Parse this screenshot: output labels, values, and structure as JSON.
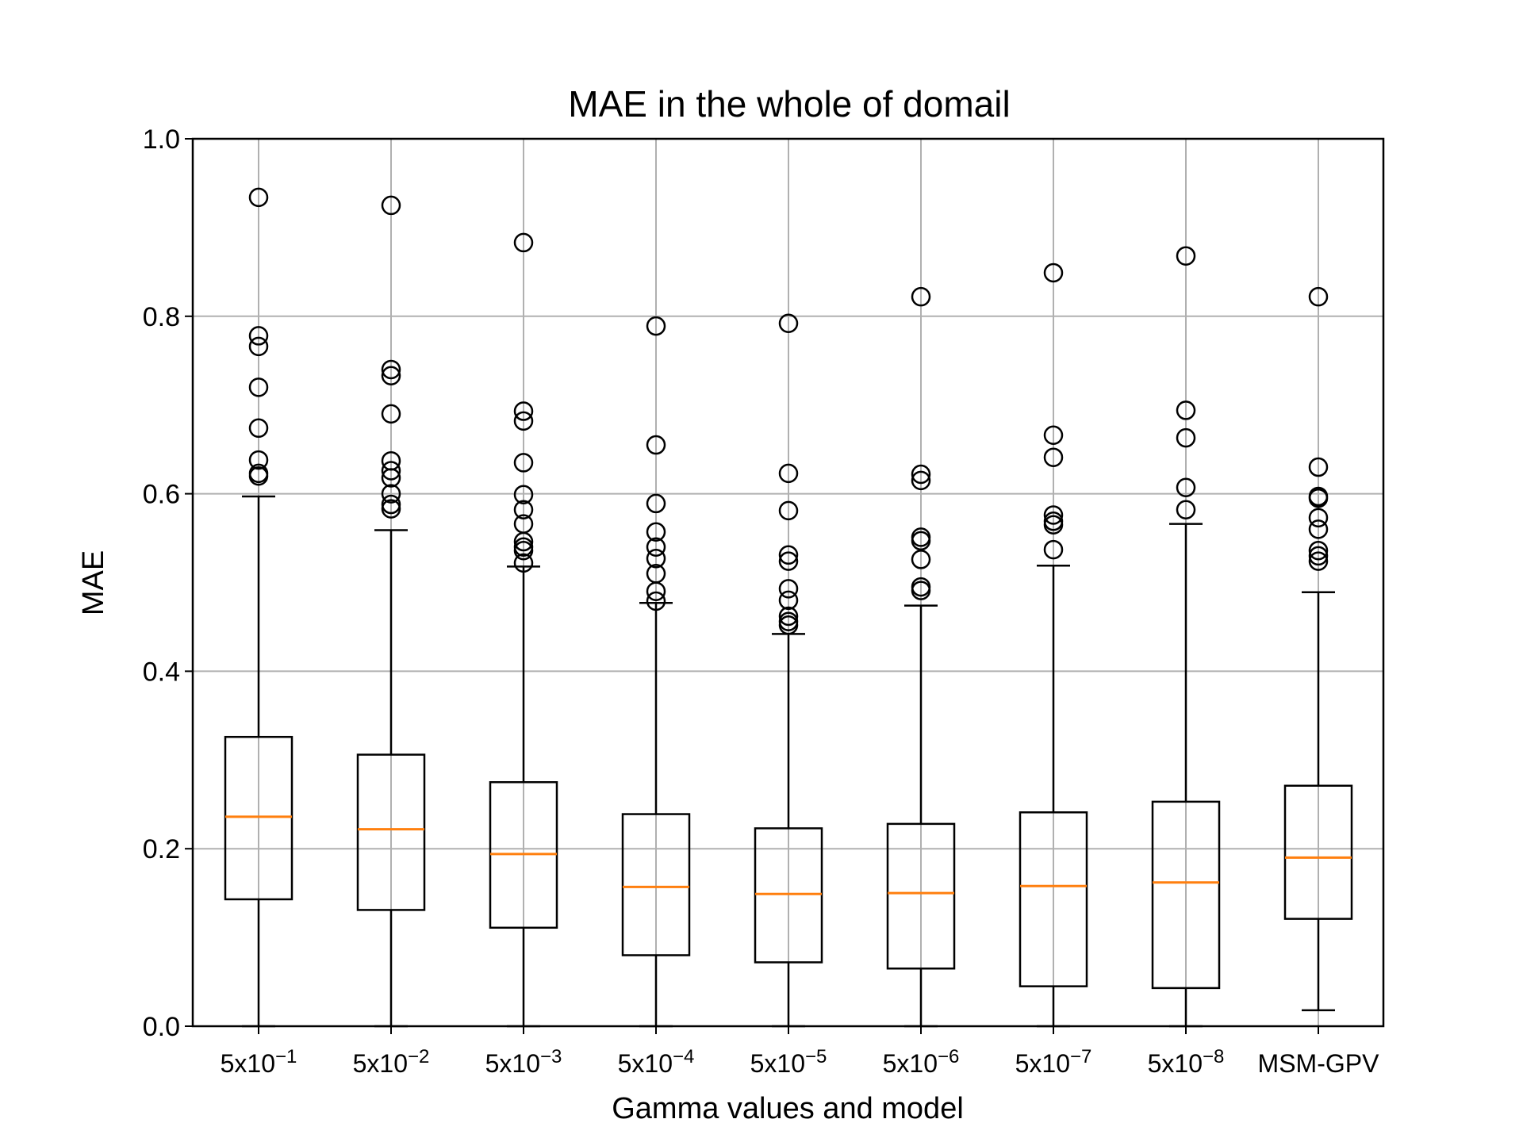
{
  "chart_data": {
    "type": "box",
    "title": "MAE in the whole of domail",
    "xlabel": "Gamma values and model",
    "ylabel": "MAE",
    "ylim": [
      0.0,
      1.0
    ],
    "yticks": [
      "0.0",
      "0.2",
      "0.4",
      "0.6",
      "0.8",
      "1.0"
    ],
    "grid": true,
    "colors": {
      "box": "#000000",
      "median": "#ff7f0e",
      "grid": "#b0b0b0"
    },
    "categories": [
      {
        "base": "5x10",
        "exp": "−1"
      },
      {
        "base": "5x10",
        "exp": "−2"
      },
      {
        "base": "5x10",
        "exp": "−3"
      },
      {
        "base": "5x10",
        "exp": "−4"
      },
      {
        "base": "5x10",
        "exp": "−5"
      },
      {
        "base": "5x10",
        "exp": "−6"
      },
      {
        "base": "5x10",
        "exp": "−7"
      },
      {
        "base": "5x10",
        "exp": "−8"
      },
      {
        "base": "MSM-GPV",
        "exp": ""
      }
    ],
    "boxes": [
      {
        "whisker_low": 0.0,
        "q1": 0.143,
        "median": 0.236,
        "q3": 0.326,
        "whisker_high": 0.597,
        "outliers": [
          0.934,
          0.778,
          0.766,
          0.72,
          0.674,
          0.638,
          0.623,
          0.62
        ]
      },
      {
        "whisker_low": 0.0,
        "q1": 0.131,
        "median": 0.222,
        "q3": 0.306,
        "whisker_high": 0.559,
        "outliers": [
          0.925,
          0.74,
          0.733,
          0.69,
          0.637,
          0.626,
          0.618,
          0.6,
          0.588,
          0.583
        ]
      },
      {
        "whisker_low": 0.0,
        "q1": 0.111,
        "median": 0.194,
        "q3": 0.275,
        "whisker_high": 0.518,
        "outliers": [
          0.883,
          0.693,
          0.682,
          0.635,
          0.599,
          0.582,
          0.566,
          0.546,
          0.54,
          0.536,
          0.522
        ]
      },
      {
        "whisker_low": 0.0,
        "q1": 0.08,
        "median": 0.157,
        "q3": 0.239,
        "whisker_high": 0.477,
        "outliers": [
          0.789,
          0.655,
          0.589,
          0.557,
          0.54,
          0.527,
          0.51,
          0.49,
          0.479
        ]
      },
      {
        "whisker_low": 0.0,
        "q1": 0.072,
        "median": 0.149,
        "q3": 0.223,
        "whisker_high": 0.442,
        "outliers": [
          0.792,
          0.623,
          0.581,
          0.531,
          0.524,
          0.493,
          0.48,
          0.462,
          0.456,
          0.452
        ]
      },
      {
        "whisker_low": 0.0,
        "q1": 0.065,
        "median": 0.15,
        "q3": 0.228,
        "whisker_high": 0.474,
        "outliers": [
          0.822,
          0.622,
          0.615,
          0.551,
          0.547,
          0.526,
          0.495,
          0.491
        ]
      },
      {
        "whisker_low": 0.0,
        "q1": 0.045,
        "median": 0.158,
        "q3": 0.241,
        "whisker_high": 0.519,
        "outliers": [
          0.849,
          0.666,
          0.641,
          0.576,
          0.569,
          0.565,
          0.537
        ]
      },
      {
        "whisker_low": 0.0,
        "q1": 0.043,
        "median": 0.162,
        "q3": 0.253,
        "whisker_high": 0.566,
        "outliers": [
          0.868,
          0.694,
          0.663,
          0.607,
          0.582
        ]
      },
      {
        "whisker_low": 0.018,
        "q1": 0.121,
        "median": 0.19,
        "q3": 0.271,
        "whisker_high": 0.489,
        "outliers": [
          0.822,
          0.63,
          0.597,
          0.595,
          0.573,
          0.56,
          0.536,
          0.53,
          0.524
        ]
      }
    ]
  }
}
